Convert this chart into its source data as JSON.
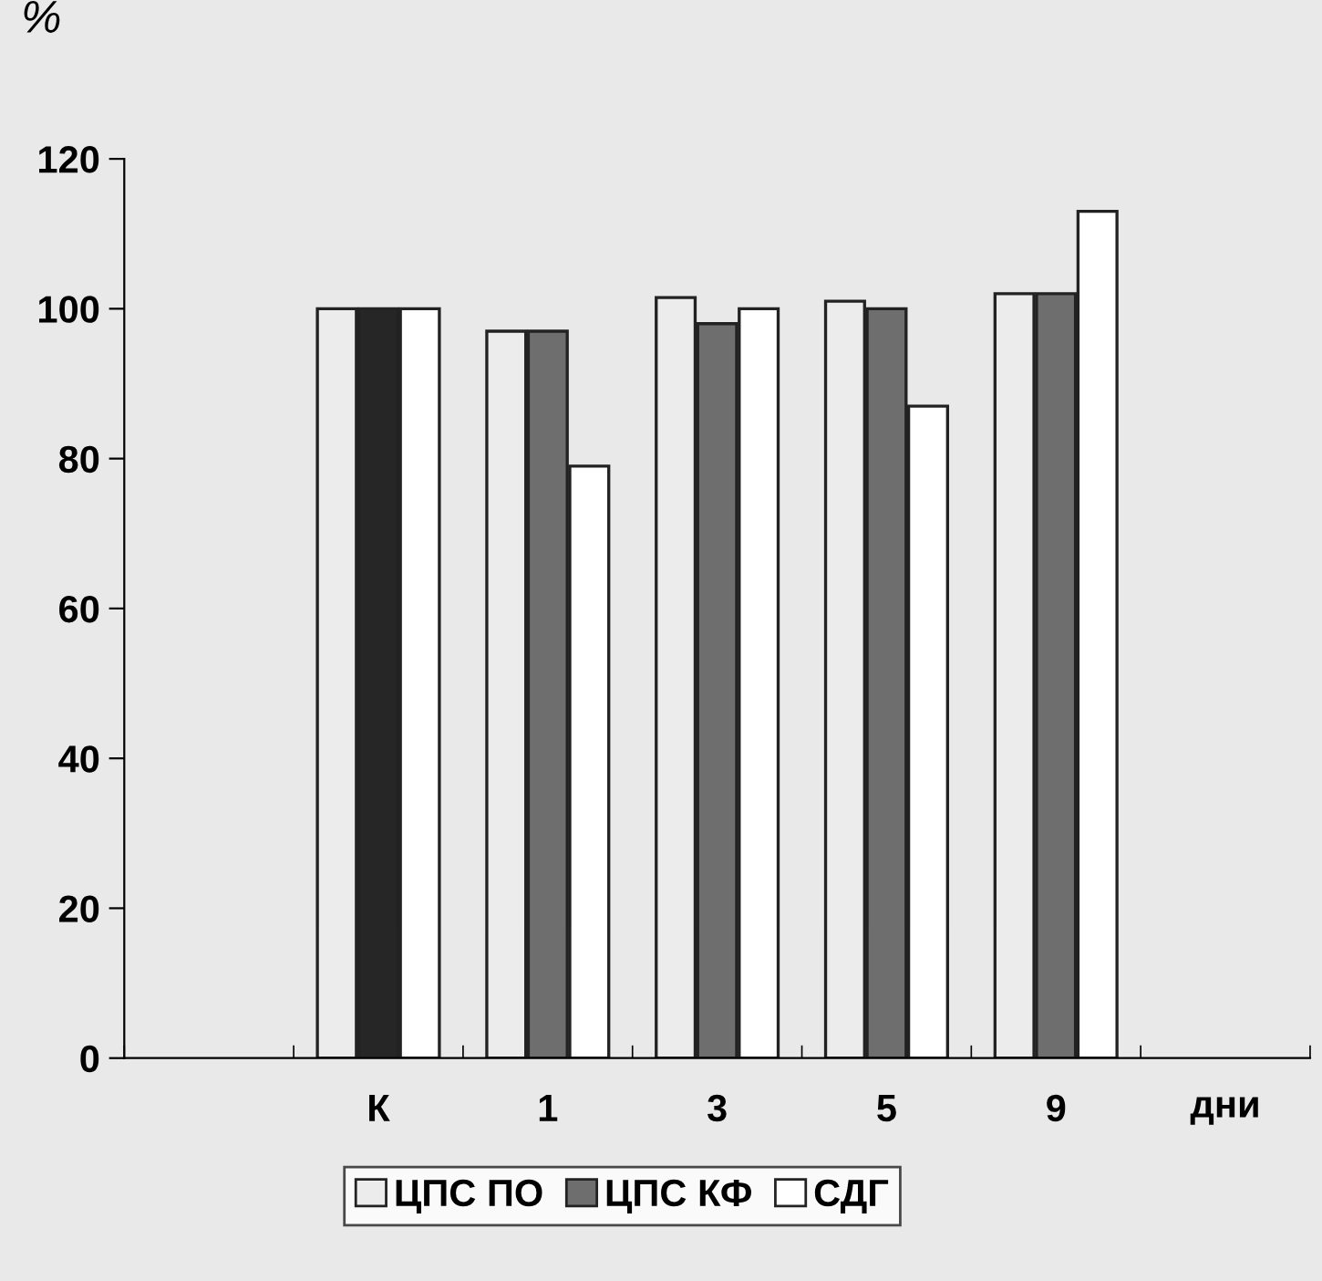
{
  "chart_data": {
    "type": "bar",
    "ylabel": "%",
    "xlabel": "дни",
    "categories": [
      null,
      "К",
      "1",
      "3",
      "5",
      "9",
      null
    ],
    "series": [
      {
        "name": "ЦПС ПО",
        "color": "#ececec",
        "values": [
          null,
          100,
          97,
          101.5,
          101,
          102,
          null
        ]
      },
      {
        "name": "ЦПС КФ",
        "color": "#6e6e6e",
        "colors": [
          "#6e6e6e",
          "#262626",
          "#6e6e6e",
          "#6e6e6e",
          "#6e6e6e",
          "#6e6e6e",
          "#6e6e6e"
        ],
        "values": [
          null,
          100,
          97,
          98,
          100,
          102,
          null
        ]
      },
      {
        "name": "СДГ",
        "color": "#ffffff",
        "values": [
          null,
          100,
          79,
          100,
          87,
          113,
          null
        ]
      }
    ],
    "ylim": [
      0,
      120
    ],
    "yticks": [
      0,
      20,
      40,
      60,
      80,
      100,
      120
    ],
    "grid": false,
    "legend": "bottom"
  }
}
